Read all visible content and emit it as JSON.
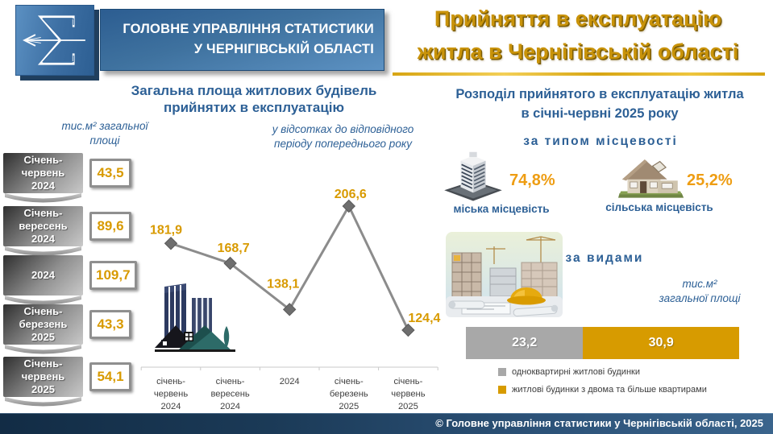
{
  "header": {
    "logo_icon": "sigma-arrow-statistics-logo",
    "org_name_line1": "ГОЛОВНЕ УПРАВЛІННЯ СТАТИСТИКИ",
    "org_name_line2": "У ЧЕРНІГІВСЬКІЙ ОБЛАСТІ",
    "title_line1": "Прийняття в експлуатацію",
    "title_line2": "житла в Чернігівській області"
  },
  "left_panel": {
    "title_line1": "Загальна площа житлових будівель",
    "title_line2": "прийнятих в експлуатацію",
    "unit_line1": "тис.м²  загальної",
    "unit_line2": "площі",
    "totals": [
      {
        "period": "Січень-\nчервень\n2024",
        "value": 43.5,
        "display": "43,5"
      },
      {
        "period": "Січень-\nвересень\n2024",
        "value": 89.6,
        "display": "89,6"
      },
      {
        "period": "2024",
        "value": 109.7,
        "display": "109,7"
      },
      {
        "period": "Січень-\nберезень\n2025",
        "value": 43.3,
        "display": "43,3"
      },
      {
        "period": "Січень-\nчервень\n2025",
        "value": 54.1,
        "display": "54,1"
      }
    ]
  },
  "chart_data": [
    {
      "type": "line",
      "note_line1": "у відсотках до відповідного",
      "note_line2": "періоду попереднього року",
      "categories": [
        "січень-\nчервень\n2024",
        "січень-\nвересень\n2024",
        "2024",
        "січень-\nберезень\n2025",
        "січень-\nчервень\n2025"
      ],
      "values": [
        181.9,
        168.7,
        138.1,
        206.6,
        124.4
      ],
      "value_labels": [
        "181,9",
        "168,7",
        "138,1",
        "206,6",
        "124,4"
      ],
      "line_color": "#8c8c8c",
      "marker": "diamond",
      "marker_color": "#6e6e6e",
      "label_color": "#d89a00",
      "grid": false,
      "y_axis": "hidden",
      "legend": "none"
    },
    {
      "type": "bar",
      "stacked": true,
      "orientation": "horizontal",
      "unit_line1": "тис.м²",
      "unit_line2": "загальної площі",
      "series": [
        {
          "name": "одноквартирні житлові будинки",
          "value": 23.2,
          "label": "23,2",
          "color": "#a8a8a8"
        },
        {
          "name": "житлові будинки з двома та більше квартирами",
          "value": 30.9,
          "label": "30,9",
          "color": "#d79b00"
        }
      ],
      "legend_position": "bottom"
    }
  ],
  "right_panel": {
    "title_line1": "Розподіл прийнятого в експлуатацію житла",
    "title_line2": "в січні-червні 2025 року",
    "by_type": {
      "heading": "за типом місцевості",
      "items": [
        {
          "label": "міська місцевість",
          "value": 74.8,
          "display": "74,8%",
          "icon": "city-building-icon"
        },
        {
          "label": "сільська місцевість",
          "value": 25.2,
          "display": "25,2%",
          "icon": "village-house-icon"
        }
      ]
    },
    "by_kind_heading": "за видами",
    "construction_image": "construction-site-photo"
  },
  "footer": {
    "copyright": "© Головне управління статистики у Чернігівській області, 2025"
  },
  "colors": {
    "heading_blue": "#2d6096",
    "title_gold": "#c9930a",
    "value_orange": "#d89a00",
    "percent_orange": "#ee9d13",
    "line_gray": "#8c8c8c",
    "bar_gray": "#a8a8a8",
    "bar_gold": "#d79b00",
    "footer_navy": "#1b3a57"
  }
}
